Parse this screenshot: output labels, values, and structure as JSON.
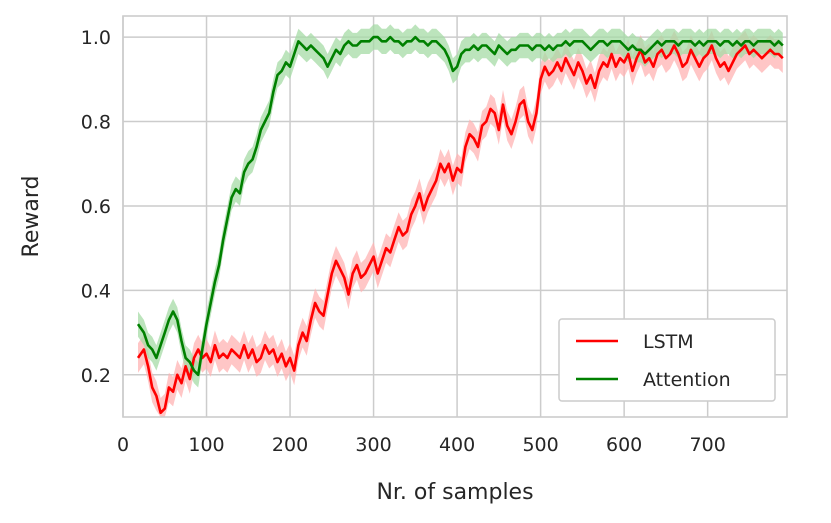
{
  "chart_data": {
    "type": "line",
    "title": "",
    "xlabel": "Nr. of samples",
    "ylabel": "Reward",
    "xlim": [
      0,
      795
    ],
    "ylim": [
      0.1,
      1.05
    ],
    "xticks": [
      0,
      100,
      200,
      300,
      400,
      500,
      600,
      700
    ],
    "yticks": [
      0.2,
      0.4,
      0.6,
      0.8,
      1.0
    ],
    "ytick_labels": [
      "0.2",
      "0.4",
      "0.6",
      "0.8",
      "1.0"
    ],
    "grid": true,
    "legend_position": "lower-right",
    "series": [
      {
        "name": "LSTM",
        "color": "#ff0000",
        "band_color": "#ffb3b3",
        "band": 0.035,
        "x": [
          18,
          25,
          30,
          35,
          40,
          45,
          50,
          55,
          60,
          65,
          70,
          75,
          80,
          85,
          90,
          95,
          100,
          105,
          110,
          115,
          120,
          125,
          130,
          135,
          140,
          145,
          150,
          155,
          160,
          165,
          170,
          175,
          180,
          185,
          190,
          195,
          200,
          205,
          210,
          215,
          220,
          225,
          230,
          235,
          240,
          245,
          250,
          255,
          260,
          265,
          270,
          275,
          280,
          285,
          290,
          295,
          300,
          305,
          310,
          315,
          320,
          325,
          330,
          335,
          340,
          345,
          350,
          355,
          360,
          365,
          370,
          375,
          380,
          385,
          390,
          395,
          400,
          405,
          410,
          415,
          420,
          425,
          430,
          435,
          440,
          445,
          450,
          455,
          460,
          465,
          470,
          475,
          480,
          485,
          490,
          495,
          500,
          505,
          510,
          515,
          520,
          525,
          530,
          535,
          540,
          545,
          550,
          555,
          560,
          565,
          570,
          575,
          580,
          585,
          590,
          595,
          600,
          605,
          610,
          615,
          620,
          625,
          630,
          635,
          640,
          645,
          650,
          655,
          660,
          665,
          670,
          675,
          680,
          685,
          690,
          695,
          700,
          705,
          710,
          715,
          720,
          725,
          730,
          735,
          740,
          745,
          750,
          755,
          760,
          765,
          770,
          775,
          780,
          785,
          790
        ],
        "y": [
          0.24,
          0.26,
          0.22,
          0.17,
          0.15,
          0.11,
          0.12,
          0.17,
          0.16,
          0.2,
          0.18,
          0.22,
          0.19,
          0.24,
          0.26,
          0.24,
          0.25,
          0.23,
          0.27,
          0.24,
          0.25,
          0.24,
          0.26,
          0.25,
          0.24,
          0.27,
          0.24,
          0.26,
          0.23,
          0.24,
          0.27,
          0.25,
          0.26,
          0.23,
          0.25,
          0.22,
          0.24,
          0.21,
          0.27,
          0.3,
          0.28,
          0.33,
          0.37,
          0.35,
          0.34,
          0.39,
          0.44,
          0.47,
          0.45,
          0.43,
          0.39,
          0.44,
          0.46,
          0.43,
          0.44,
          0.46,
          0.48,
          0.44,
          0.47,
          0.5,
          0.49,
          0.52,
          0.55,
          0.53,
          0.54,
          0.58,
          0.6,
          0.63,
          0.59,
          0.62,
          0.64,
          0.66,
          0.7,
          0.68,
          0.7,
          0.66,
          0.69,
          0.68,
          0.74,
          0.77,
          0.76,
          0.74,
          0.79,
          0.8,
          0.83,
          0.82,
          0.78,
          0.84,
          0.79,
          0.77,
          0.8,
          0.84,
          0.85,
          0.8,
          0.78,
          0.82,
          0.9,
          0.93,
          0.91,
          0.92,
          0.94,
          0.92,
          0.95,
          0.93,
          0.91,
          0.94,
          0.92,
          0.89,
          0.91,
          0.88,
          0.92,
          0.94,
          0.93,
          0.96,
          0.93,
          0.95,
          0.94,
          0.96,
          0.92,
          0.95,
          0.97,
          0.94,
          0.95,
          0.93,
          0.96,
          0.97,
          0.95,
          0.96,
          0.98,
          0.96,
          0.93,
          0.94,
          0.97,
          0.95,
          0.93,
          0.95,
          0.96,
          0.98,
          0.95,
          0.93,
          0.94,
          0.92,
          0.94,
          0.96,
          0.97,
          0.98,
          0.96,
          0.97,
          0.96,
          0.95,
          0.96,
          0.97,
          0.96,
          0.96,
          0.95
        ],
        "y_comment": "values read from the plotted line"
      },
      {
        "name": "Attention",
        "color": "#008000",
        "band_color": "#a6dba6",
        "band": 0.03,
        "x": [
          18,
          25,
          30,
          35,
          40,
          45,
          50,
          55,
          60,
          65,
          70,
          75,
          80,
          85,
          90,
          95,
          100,
          105,
          110,
          115,
          120,
          125,
          130,
          135,
          140,
          145,
          150,
          155,
          160,
          165,
          170,
          175,
          180,
          185,
          190,
          195,
          200,
          205,
          210,
          215,
          220,
          225,
          230,
          235,
          240,
          245,
          250,
          255,
          260,
          265,
          270,
          275,
          280,
          285,
          290,
          295,
          300,
          305,
          310,
          315,
          320,
          325,
          330,
          335,
          340,
          345,
          350,
          355,
          360,
          365,
          370,
          375,
          380,
          385,
          390,
          395,
          400,
          405,
          410,
          415,
          420,
          425,
          430,
          435,
          440,
          445,
          450,
          455,
          460,
          465,
          470,
          475,
          480,
          485,
          490,
          495,
          500,
          505,
          510,
          515,
          520,
          525,
          530,
          535,
          540,
          545,
          550,
          555,
          560,
          565,
          570,
          575,
          580,
          585,
          590,
          595,
          600,
          605,
          610,
          615,
          620,
          625,
          630,
          635,
          640,
          645,
          650,
          655,
          660,
          665,
          670,
          675,
          680,
          685,
          690,
          695,
          700,
          705,
          710,
          715,
          720,
          725,
          730,
          735,
          740,
          745,
          750,
          755,
          760,
          765,
          770,
          775,
          780,
          785,
          790
        ],
        "y": [
          0.32,
          0.3,
          0.27,
          0.26,
          0.24,
          0.27,
          0.3,
          0.33,
          0.35,
          0.33,
          0.28,
          0.24,
          0.23,
          0.21,
          0.2,
          0.26,
          0.32,
          0.37,
          0.42,
          0.46,
          0.52,
          0.57,
          0.62,
          0.64,
          0.63,
          0.68,
          0.7,
          0.71,
          0.74,
          0.78,
          0.8,
          0.82,
          0.87,
          0.91,
          0.92,
          0.94,
          0.93,
          0.96,
          0.99,
          0.98,
          0.97,
          0.98,
          0.97,
          0.96,
          0.95,
          0.93,
          0.95,
          0.97,
          0.96,
          0.98,
          0.99,
          0.98,
          0.98,
          0.99,
          0.99,
          0.99,
          1.0,
          1.0,
          0.99,
          0.99,
          1.0,
          0.99,
          0.99,
          0.98,
          0.99,
          0.99,
          1.0,
          0.99,
          0.99,
          0.98,
          0.99,
          0.99,
          0.98,
          0.97,
          0.95,
          0.92,
          0.93,
          0.96,
          0.97,
          0.97,
          0.98,
          0.97,
          0.98,
          0.98,
          0.97,
          0.96,
          0.98,
          0.97,
          0.96,
          0.97,
          0.97,
          0.98,
          0.98,
          0.98,
          0.97,
          0.98,
          0.98,
          0.97,
          0.98,
          0.97,
          0.98,
          0.98,
          0.99,
          0.98,
          0.99,
          0.99,
          0.99,
          0.98,
          0.97,
          0.98,
          0.99,
          0.99,
          0.98,
          0.99,
          0.99,
          0.99,
          0.98,
          0.97,
          0.98,
          0.97,
          0.97,
          0.96,
          0.97,
          0.98,
          0.99,
          0.98,
          0.99,
          0.99,
          0.99,
          0.98,
          0.99,
          0.99,
          0.99,
          0.98,
          0.99,
          0.98,
          0.99,
          0.99,
          0.99,
          0.98,
          0.99,
          0.99,
          0.98,
          0.99,
          0.98,
          0.99,
          0.99,
          0.98,
          0.99,
          0.99,
          0.99,
          0.99,
          0.98,
          0.99,
          0.98
        ]
      }
    ]
  }
}
